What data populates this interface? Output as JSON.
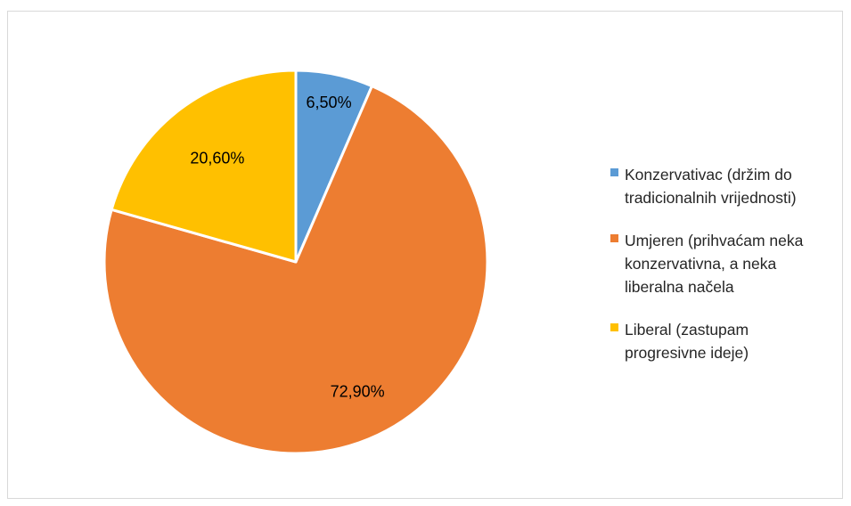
{
  "chart_data": {
    "type": "pie",
    "title": "",
    "series": [
      {
        "name": "",
        "values": [
          6.5,
          72.9,
          20.6
        ],
        "labels": [
          "6,50%",
          "72,90%",
          "20,60%"
        ]
      }
    ],
    "categories": [
      "Konzervativac (držim do\ntradicionalnih vrijednosti)",
      "Umjeren (prihvaćam neka\nkonzervativna, a neka\nliberalna načela",
      "Liberal (zastupam\nprogresivne ideje)"
    ],
    "colors": [
      "#5b9bd5",
      "#ed7d31",
      "#ffc000"
    ],
    "start_angle": "12 o'clock, clockwise",
    "legend_position": "right"
  }
}
